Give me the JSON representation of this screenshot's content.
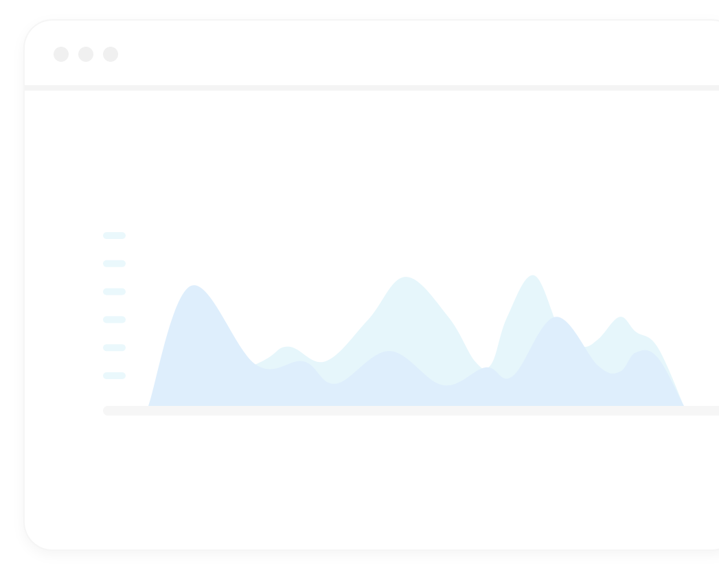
{
  "window": {
    "controls": [
      "window-dot-1",
      "window-dot-2",
      "window-dot-3"
    ]
  },
  "colors": {
    "area_back": "#e6f6fb",
    "area_front": "#deeefc",
    "tick_marks": "#eaf8fc",
    "baseline": "#f6f6f6",
    "window_dots": "#f0f0f0",
    "titlebar_border": "#f4f4f4"
  },
  "chart_data": {
    "type": "area",
    "title": "",
    "xlabel": "",
    "ylabel": "",
    "y_tick_count": 6,
    "ylim": [
      0,
      100
    ],
    "xlim": [
      0,
      100
    ],
    "grid": false,
    "series": [
      {
        "layer": "back",
        "x": [
          0,
          20,
          26,
          33,
          41,
          48,
          56,
          61,
          64,
          67,
          72,
          77,
          81,
          84,
          88,
          91,
          95,
          100
        ],
        "values": [
          0,
          28,
          40,
          30,
          58,
          87,
          60,
          30,
          28,
          60,
          88,
          50,
          40,
          45,
          60,
          50,
          40,
          0
        ]
      },
      {
        "layer": "front",
        "x": [
          0,
          8,
          20,
          29,
          35,
          45,
          55,
          63,
          68,
          76,
          84,
          88,
          91,
          95,
          100
        ],
        "values": [
          0,
          81,
          28,
          30,
          15,
          37,
          14,
          26,
          20,
          60,
          27,
          23,
          36,
          33,
          0
        ]
      }
    ]
  }
}
